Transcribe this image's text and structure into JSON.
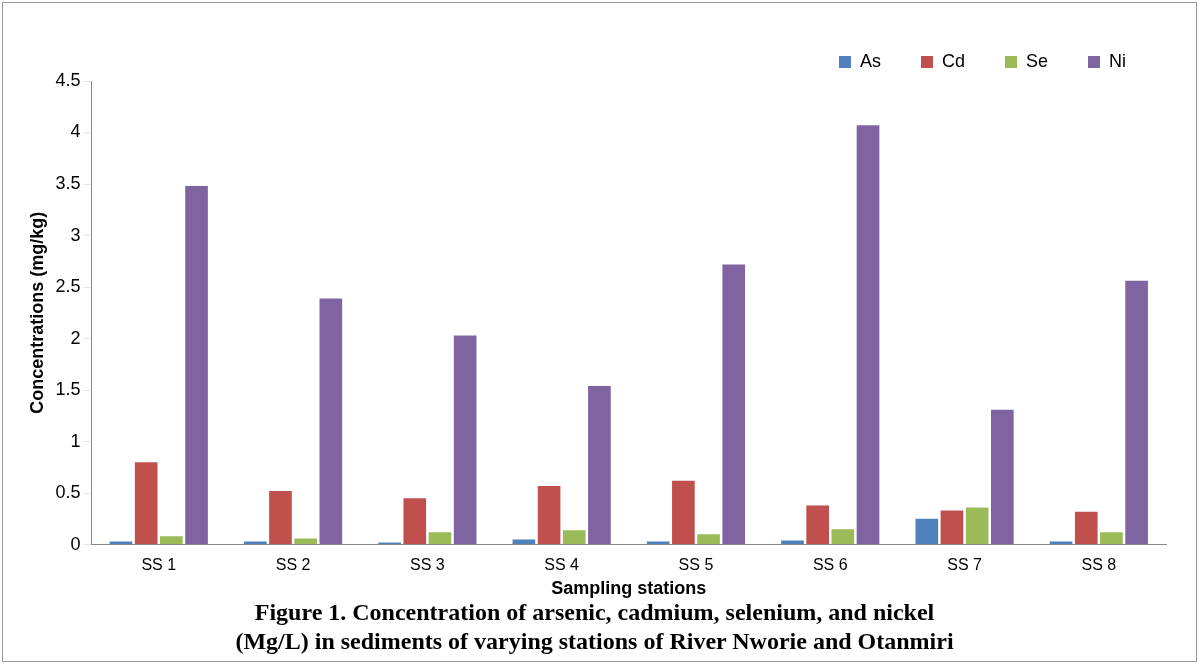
{
  "chart_data": {
    "type": "bar",
    "title": "Figure 1. Concentration of arsenic, cadmium, selenium, and nickel (Mg/L) in sediments of varying stations of River Nworie and Otanmiri",
    "xlabel": "Sampling stations",
    "ylabel": "Concentrations (mg/kg)",
    "categories": [
      "SS 1",
      "SS 2",
      "SS 3",
      "SS 4",
      "SS 5",
      "SS 6",
      "SS 7",
      "SS 8"
    ],
    "series": [
      {
        "name": "As",
        "color": "#4f81bd",
        "values": [
          0.03,
          0.03,
          0.02,
          0.05,
          0.03,
          0.04,
          0.25,
          0.03
        ]
      },
      {
        "name": "Cd",
        "color": "#c0504d",
        "values": [
          0.8,
          0.52,
          0.45,
          0.57,
          0.62,
          0.38,
          0.33,
          0.32
        ]
      },
      {
        "name": "Se",
        "color": "#9bbb59",
        "values": [
          0.08,
          0.06,
          0.12,
          0.14,
          0.1,
          0.15,
          0.36,
          0.12
        ]
      },
      {
        "name": "Ni",
        "color": "#8064a2",
        "values": [
          3.48,
          2.39,
          2.03,
          1.54,
          2.72,
          4.07,
          1.31,
          2.56
        ]
      }
    ],
    "ylim": [
      0,
      4.5
    ],
    "yticks": [
      0,
      0.5,
      1,
      1.5,
      2,
      2.5,
      3,
      3.5,
      4,
      4.5
    ],
    "grid": false,
    "legend": "top right"
  }
}
